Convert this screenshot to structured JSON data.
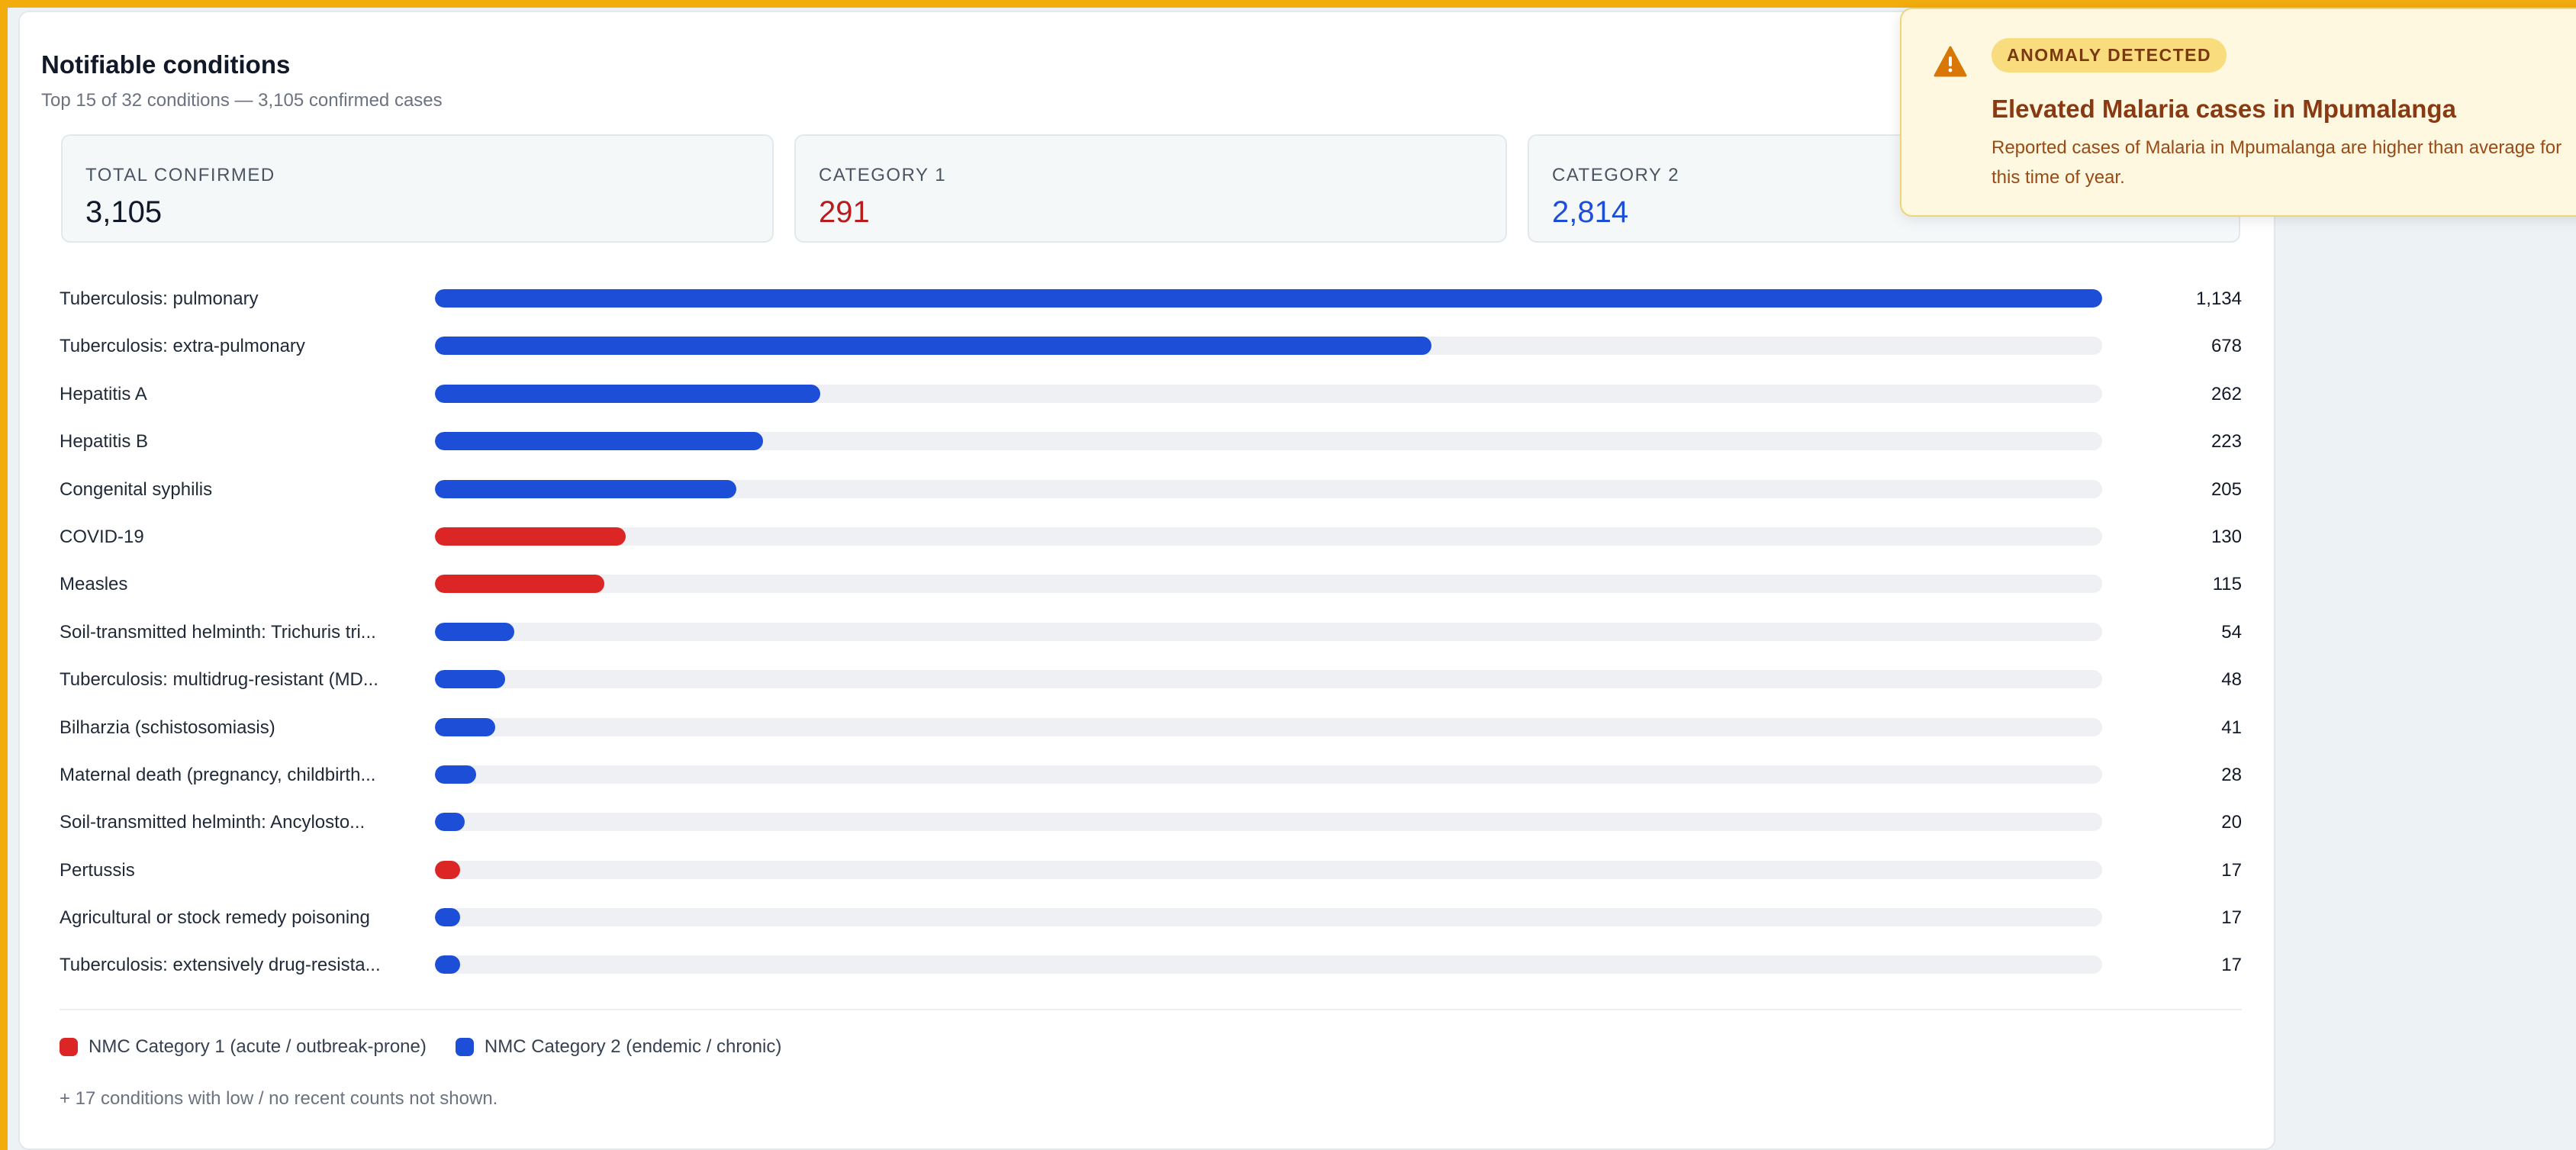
{
  "panel": {
    "title": "Notifiable conditions",
    "subtitle": "Top 15 of 32 conditions — 3,105 confirmed cases"
  },
  "stats": [
    {
      "label": "TOTAL CONFIRMED",
      "value": "3,105"
    },
    {
      "label": "CATEGORY 1",
      "value": "291"
    },
    {
      "label": "CATEGORY 2",
      "value": "2,814"
    }
  ],
  "colors": {
    "category1": "#dc2626",
    "category2": "#1d4ed8",
    "track": "#eef0f3",
    "alert_accent": "#d97706"
  },
  "chart_data": {
    "type": "bar",
    "orientation": "horizontal",
    "xlim": [
      0,
      1134
    ],
    "categories": [
      "Tuberculosis: pulmonary",
      "Tuberculosis: extra-pulmonary",
      "Hepatitis A",
      "Hepatitis B",
      "Congenital syphilis",
      "COVID-19",
      "Measles",
      "Soil-transmitted helminth: Trichuris tri...",
      "Tuberculosis: multidrug-resistant (MD...",
      "Bilharzia (schistosomiasis)",
      "Maternal death (pregnancy, childbirth...",
      "Soil-transmitted helminth: Ancylosto...",
      "Pertussis",
      "Agricultural or stock remedy poisoning",
      "Tuberculosis: extensively drug-resista..."
    ],
    "values": [
      1134,
      678,
      262,
      223,
      205,
      130,
      115,
      54,
      48,
      41,
      28,
      20,
      17,
      17,
      17
    ],
    "value_labels": [
      "1,134",
      "678",
      "262",
      "223",
      "205",
      "130",
      "115",
      "54",
      "48",
      "41",
      "28",
      "20",
      "17",
      "17",
      "17"
    ],
    "category_group": [
      2,
      2,
      2,
      2,
      2,
      1,
      1,
      2,
      2,
      2,
      2,
      2,
      1,
      2,
      2
    ],
    "legend": [
      {
        "name": "NMC Category 1 (acute / outbreak-prone)",
        "color": "#dc2626"
      },
      {
        "name": "NMC Category 2 (endemic / chronic)",
        "color": "#1d4ed8"
      }
    ]
  },
  "footnote": "+ 17 conditions with low / no recent counts not shown.",
  "alert": {
    "icon": "warning-icon",
    "badge": "ANOMALY DETECTED",
    "title": "Elevated Malaria cases in Mpumalanga",
    "message": "Reported cases of Malaria in Mpumalanga are higher than average for this time of year."
  }
}
